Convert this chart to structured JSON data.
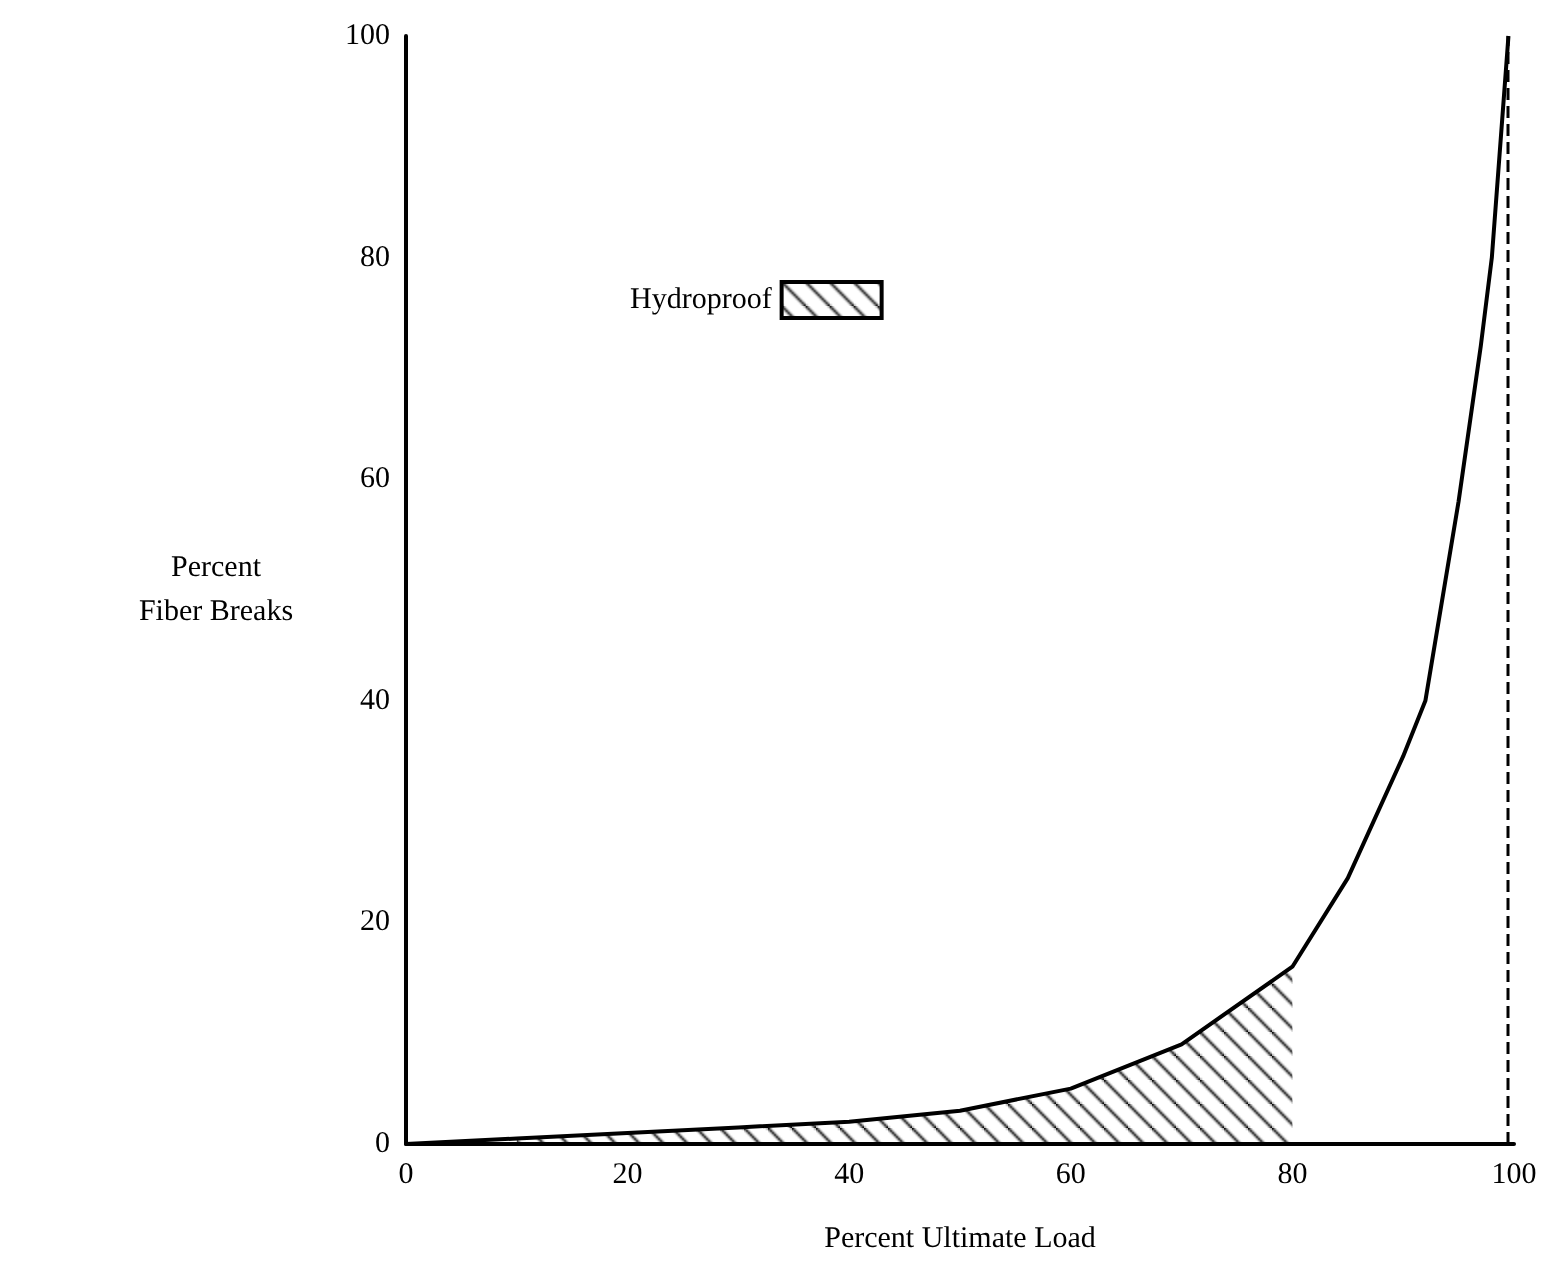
{
  "chart_data": {
    "type": "line",
    "xlabel": "Percent Ultimate Load",
    "ylabel": "Percent\nFiber Breaks",
    "series": [
      {
        "color": "#000000",
        "x": [
          0,
          10,
          20,
          30,
          40,
          50,
          60,
          70,
          80,
          85,
          90,
          92,
          95,
          97,
          98,
          99.5
        ],
        "values": [
          0,
          0.5,
          1,
          1.5,
          2,
          3,
          5,
          9,
          16,
          24,
          35,
          40,
          58,
          72,
          80,
          100
        ]
      },
      {
        "type": "area",
        "name": "Hydroproof",
        "color": "#000000",
        "x": [
          10,
          20,
          30,
          40,
          50,
          60,
          70,
          80
        ],
        "values": [
          0.5,
          1,
          1.5,
          2,
          3,
          5,
          9,
          16
        ]
      }
    ],
    "xlim": [
      0,
      100
    ],
    "xticks": [
      0,
      20,
      40,
      60,
      80,
      100
    ],
    "ylim": [
      0,
      100
    ],
    "yticks": [
      0,
      20,
      40,
      60,
      80,
      100
    ],
    "ref_lines": [
      {
        "axis": "x",
        "value": 99.5,
        "line_style": "dashed",
        "color": "#000000"
      }
    ],
    "grid": false,
    "legend": "top",
    "marker": "none",
    "line_style": "solid"
  }
}
